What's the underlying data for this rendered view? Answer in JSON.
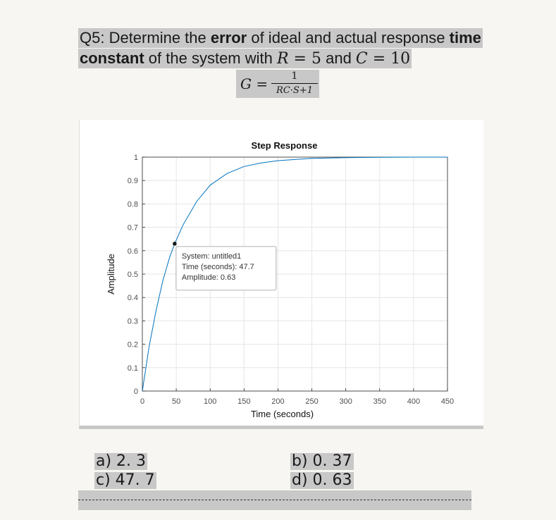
{
  "question": {
    "line1_pre": "Q5: Determine the ",
    "line1_bold1": "error",
    "line1_mid": " of ideal and actual response ",
    "line1_bold2": "time",
    "line2_bold": "constant",
    "line2_pre": " of the system with ",
    "r_symbol": "R",
    "eq1": " = ",
    "r_value": "5",
    "and_text": " and ",
    "c_symbol": "C",
    "eq2": " = ",
    "c_value": "10",
    "formula_lhs": "G",
    "formula_eq": " = ",
    "formula_num": "1",
    "formula_den": "RC·S+1"
  },
  "chart_data": {
    "type": "line",
    "title": "Step Response",
    "xlabel": "Time (seconds)",
    "ylabel": "Amplitude",
    "xlim": [
      0,
      450
    ],
    "ylim": [
      0,
      1
    ],
    "xticks": [
      0,
      50,
      100,
      150,
      200,
      250,
      300,
      350,
      400,
      450
    ],
    "yticks": [
      0,
      0.1,
      0.2,
      0.3,
      0.4,
      0.5,
      0.6,
      0.7,
      0.8,
      0.9,
      1
    ],
    "grid": true,
    "series": [
      {
        "color": "#0072bd",
        "x": [
          0,
          10,
          20,
          30,
          40,
          47.7,
          60,
          80,
          100,
          125,
          150,
          175,
          200,
          250,
          300,
          350,
          400,
          450
        ],
        "y": [
          0,
          0.19,
          0.34,
          0.47,
          0.57,
          0.63,
          0.71,
          0.81,
          0.88,
          0.93,
          0.96,
          0.975,
          0.985,
          0.995,
          0.998,
          0.999,
          1.0,
          1.0
        ]
      }
    ],
    "datatip": {
      "x": 47.7,
      "y": 0.63,
      "lines": [
        "System: untitled1",
        "Time (seconds): 47.7",
        "Amplitude: 0.63"
      ]
    }
  },
  "options": {
    "a": "a) 2. 3",
    "b": "b) 0. 37",
    "c": "c) 47. 7",
    "d": "d) 0. 63"
  }
}
